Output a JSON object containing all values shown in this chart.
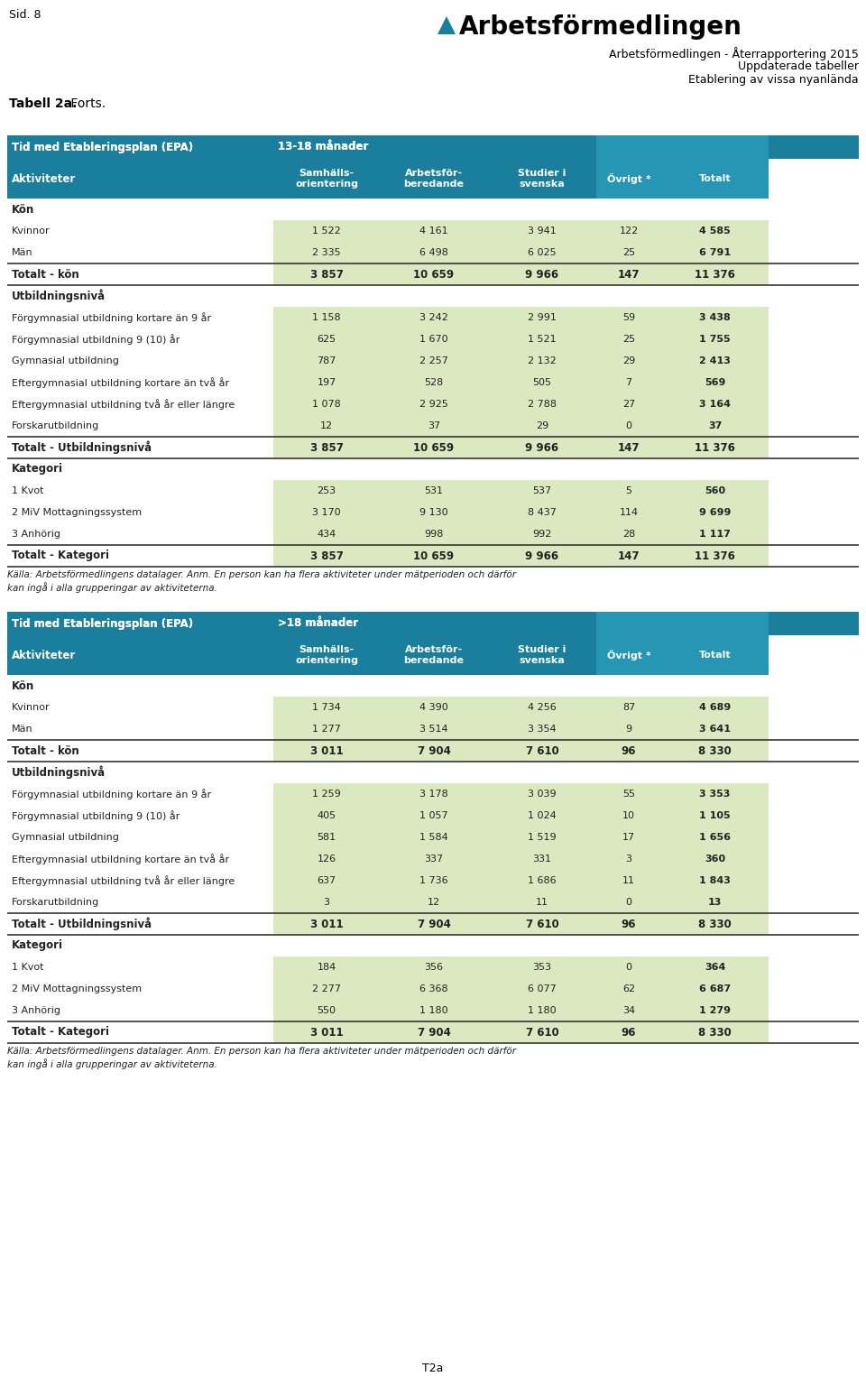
{
  "page_label": "Sid. 8",
  "header_line1": "Arbetsförmedlingen - Återrapportering 2015",
  "header_line2": "Uppdaterade tabeller",
  "header_line3": "Etablering av vissa nyanlända",
  "logo_text": "Arbetsförmedlingen",
  "table_title_bold": "Tabell 2a.",
  "table_title_normal": " Forts.",
  "table1": {
    "period": "13-18 månader",
    "header_col0": "Tid med Etableringsplan (EPA)",
    "header_col1": "Aktiviteter",
    "col_headers": [
      "Samhälls-\norientering",
      "Arbetsför-\nberedande",
      "Studier i\nsvenska",
      "Övrigt *",
      "Totalt"
    ],
    "sections": [
      {
        "section_label": "Kön",
        "rows": [
          {
            "label": "Kvinnor",
            "values": [
              "1 522",
              "4 161",
              "3 941",
              "122",
              "4 585"
            ]
          },
          {
            "label": "Män",
            "values": [
              "2 335",
              "6 498",
              "6 025",
              "25",
              "6 791"
            ]
          }
        ],
        "total_row": {
          "label": "Totalt - kön",
          "values": [
            "3 857",
            "10 659",
            "9 966",
            "147",
            "11 376"
          ]
        }
      },
      {
        "section_label": "Utbildningsnivå",
        "rows": [
          {
            "label": "Förgymnasial utbildning kortare än 9 år",
            "values": [
              "1 158",
              "3 242",
              "2 991",
              "59",
              "3 438"
            ]
          },
          {
            "label": "Förgymnasial utbildning 9 (10) år",
            "values": [
              "625",
              "1 670",
              "1 521",
              "25",
              "1 755"
            ]
          },
          {
            "label": "Gymnasial utbildning",
            "values": [
              "787",
              "2 257",
              "2 132",
              "29",
              "2 413"
            ]
          },
          {
            "label": "Eftergymnasial utbildning kortare än två år",
            "values": [
              "197",
              "528",
              "505",
              "7",
              "569"
            ]
          },
          {
            "label": "Eftergymnasial utbildning två år eller längre",
            "values": [
              "1 078",
              "2 925",
              "2 788",
              "27",
              "3 164"
            ]
          },
          {
            "label": "Forskarutbildning",
            "values": [
              "12",
              "37",
              "29",
              "0",
              "37"
            ]
          }
        ],
        "total_row": {
          "label": "Totalt - Utbildningsnivå",
          "values": [
            "3 857",
            "10 659",
            "9 966",
            "147",
            "11 376"
          ]
        }
      },
      {
        "section_label": "Kategori",
        "rows": [
          {
            "label": "1 Kvot",
            "values": [
              "253",
              "531",
              "537",
              "5",
              "560"
            ]
          },
          {
            "label": "2 MiV Mottagningssystem",
            "values": [
              "3 170",
              "9 130",
              "8 437",
              "114",
              "9 699"
            ]
          },
          {
            "label": "3 Anhörig",
            "values": [
              "434",
              "998",
              "992",
              "28",
              "1 117"
            ]
          }
        ],
        "total_row": {
          "label": "Totalt - Kategori",
          "values": [
            "3 857",
            "10 659",
            "9 966",
            "147",
            "11 376"
          ]
        }
      }
    ],
    "footnote": "Källa: Arbetsförmedlingens datalager. Anm. En person kan ha flera aktiviteter under mätperioden och därför\nkan ingå i alla grupperingar av aktiviteterna."
  },
  "table2": {
    "period": ">18 månader",
    "header_col0": "Tid med Etableringsplan (EPA)",
    "header_col1": "Aktiviteter",
    "col_headers": [
      "Samhälls-\norientering",
      "Arbetsför-\nberedande",
      "Studier i\nsvenska",
      "Övrigt *",
      "Totalt"
    ],
    "sections": [
      {
        "section_label": "Kön",
        "rows": [
          {
            "label": "Kvinnor",
            "values": [
              "1 734",
              "4 390",
              "4 256",
              "87",
              "4 689"
            ]
          },
          {
            "label": "Män",
            "values": [
              "1 277",
              "3 514",
              "3 354",
              "9",
              "3 641"
            ]
          }
        ],
        "total_row": {
          "label": "Totalt - kön",
          "values": [
            "3 011",
            "7 904",
            "7 610",
            "96",
            "8 330"
          ]
        }
      },
      {
        "section_label": "Utbildningsnivå",
        "rows": [
          {
            "label": "Förgymnasial utbildning kortare än 9 år",
            "values": [
              "1 259",
              "3 178",
              "3 039",
              "55",
              "3 353"
            ]
          },
          {
            "label": "Förgymnasial utbildning 9 (10) år",
            "values": [
              "405",
              "1 057",
              "1 024",
              "10",
              "1 105"
            ]
          },
          {
            "label": "Gymnasial utbildning",
            "values": [
              "581",
              "1 584",
              "1 519",
              "17",
              "1 656"
            ]
          },
          {
            "label": "Eftergymnasial utbildning kortare än två år",
            "values": [
              "126",
              "337",
              "331",
              "3",
              "360"
            ]
          },
          {
            "label": "Eftergymnasial utbildning två år eller längre",
            "values": [
              "637",
              "1 736",
              "1 686",
              "11",
              "1 843"
            ]
          },
          {
            "label": "Forskarutbildning",
            "values": [
              "3",
              "12",
              "11",
              "0",
              "13"
            ]
          }
        ],
        "total_row": {
          "label": "Totalt - Utbildningsnivå",
          "values": [
            "3 011",
            "7 904",
            "7 610",
            "96",
            "8 330"
          ]
        }
      },
      {
        "section_label": "Kategori",
        "rows": [
          {
            "label": "1 Kvot",
            "values": [
              "184",
              "356",
              "353",
              "0",
              "364"
            ]
          },
          {
            "label": "2 MiV Mottagningssystem",
            "values": [
              "2 277",
              "6 368",
              "6 077",
              "62",
              "6 687"
            ]
          },
          {
            "label": "3 Anhörig",
            "values": [
              "550",
              "1 180",
              "1 180",
              "34",
              "1 279"
            ]
          }
        ],
        "total_row": {
          "label": "Totalt - Kategori",
          "values": [
            "3 011",
            "7 904",
            "7 610",
            "96",
            "8 330"
          ]
        }
      }
    ],
    "footnote": "Källa: Arbetsförmedlingens datalager. Anm. En person kan ha flera aktiviteter under mätperioden och därför\nkan ingå i alla grupperingar av aktiviteterna."
  },
  "page_footer": "T2a",
  "colors": {
    "header_bg": "#1a7f9c",
    "header_bg_right": "#2696b5",
    "data_green": "#dce9c0",
    "data_white": "#ffffff",
    "line_dark": "#444444",
    "line_light": "#aaaaaa",
    "text_dark": "#222222",
    "text_white": "#ffffff"
  }
}
